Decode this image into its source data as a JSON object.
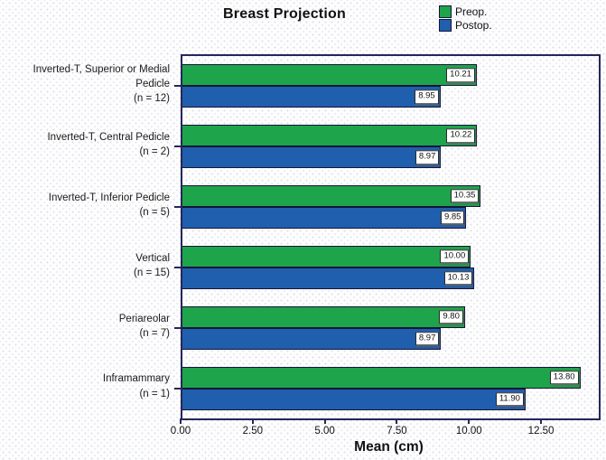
{
  "title": "Breast Projection",
  "legend": {
    "items": [
      {
        "label": "Preop.",
        "color": "#1ea44a"
      },
      {
        "label": "Postop.",
        "color": "#1f5fae"
      }
    ]
  },
  "x_axis": {
    "label": "Mean (cm)"
  },
  "groups": [
    {
      "label": "Inverted-T, Superior or Medial Pedicle",
      "n_label": "(n = 12)",
      "preop_label": "10.21",
      "postop_label": "8.95"
    },
    {
      "label": "Inverted-T, Central Pedicle",
      "n_label": "(n = 2)",
      "preop_label": "10.22",
      "postop_label": "8.97"
    },
    {
      "label": "Inverted-T, Inferior Pedicle",
      "n_label": "(n = 5)",
      "preop_label": "10.35",
      "postop_label": "9.85"
    },
    {
      "label": "Vertical",
      "n_label": "(n = 15)",
      "preop_label": "10.00",
      "postop_label": "10.13"
    },
    {
      "label": "Periareolar",
      "n_label": "(n = 7)",
      "preop_label": "9.80",
      "postop_label": "8.97"
    },
    {
      "label": "Inframammary",
      "n_label": "(n = 1)",
      "preop_label": "13.80",
      "postop_label": "11.90"
    }
  ],
  "chart_data": {
    "type": "bar",
    "orientation": "horizontal",
    "title": "Breast Projection",
    "xlabel": "Mean (cm)",
    "categories": [
      "Inverted-T, Superior or Medial Pedicle (n = 12)",
      "Inverted-T, Central Pedicle (n = 2)",
      "Inverted-T, Inferior Pedicle (n = 5)",
      "Vertical (n = 15)",
      "Periareolar (n = 7)",
      "Inframammary (n = 1)"
    ],
    "series": [
      {
        "name": "Preop.",
        "color": "#1ea44a",
        "values": [
          10.21,
          10.22,
          10.35,
          10.0,
          9.8,
          13.8
        ]
      },
      {
        "name": "Postop.",
        "color": "#1f5fae",
        "values": [
          8.95,
          8.97,
          9.85,
          10.13,
          8.97,
          11.9
        ]
      }
    ],
    "x_ticks": [
      0,
      2.5,
      5,
      7.5,
      10,
      12.5
    ],
    "x_tick_labels": [
      "0.00",
      "2.50",
      "5.00",
      "7.50",
      "10.00",
      "12.50"
    ],
    "xlim": [
      0,
      14.44
    ],
    "grid": false,
    "legend_position": "top-right"
  }
}
